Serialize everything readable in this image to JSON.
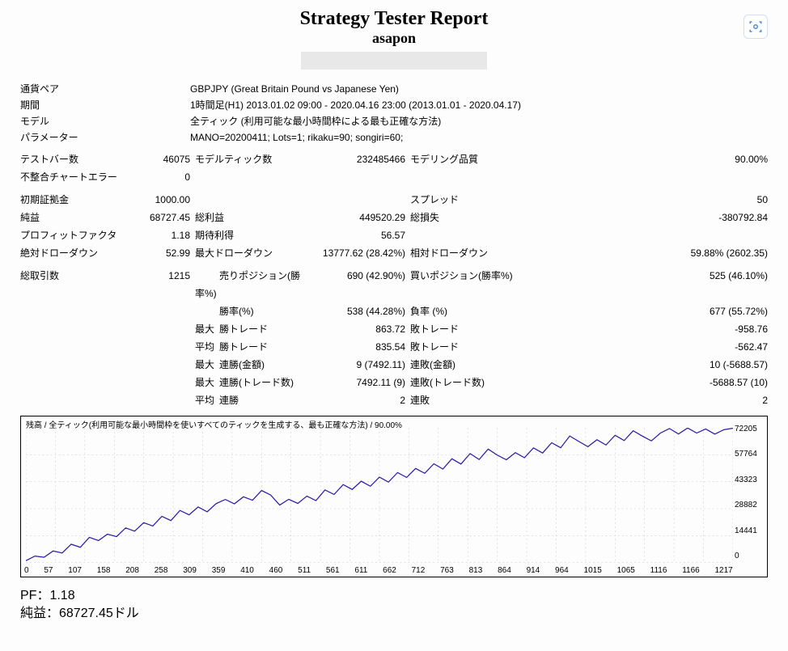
{
  "header": {
    "title": "Strategy Tester Report",
    "subtitle": "asapon"
  },
  "info_rows": [
    {
      "label": "通貨ペア",
      "value": "GBPJPY (Great Britain Pound vs Japanese Yen)"
    },
    {
      "label": "期間",
      "value": "1時間足(H1) 2013.01.02 09:00 - 2020.04.16 23:00 (2013.01.01 - 2020.04.17)"
    },
    {
      "label": "モデル",
      "value": "全ティック (利用可能な最小時間枠による最も正確な方法)"
    },
    {
      "label": "パラメーター",
      "value": "MANO=20200411; Lots=1; rikaku=90; songiri=60;"
    }
  ],
  "block2": [
    {
      "l1": "テストバー数",
      "v1": "46075",
      "l2": "モデルティック数",
      "v2": "232485466",
      "l3": "モデリング品質",
      "v3": "90.00%"
    },
    {
      "l1": "不整合チャートエラー",
      "v1": "0",
      "l2": "",
      "v2": "",
      "l3": "",
      "v3": ""
    }
  ],
  "block3": [
    {
      "l1": "初期証拠金",
      "v1": "1000.00",
      "l2": "",
      "v2": "",
      "l3": "スプレッド",
      "v3": "50"
    },
    {
      "l1": "純益",
      "v1": "68727.45",
      "l2": "総利益",
      "v2": "449520.29",
      "l3": "総損失",
      "v3": "-380792.84"
    },
    {
      "l1": "プロフィットファクタ",
      "v1": "1.18",
      "l2": "期待利得",
      "v2": "56.57",
      "l3": "",
      "v3": ""
    },
    {
      "l1": "絶対ドローダウン",
      "v1": "52.99",
      "l2": "最大ドローダウン",
      "v2": "13777.62 (28.42%)",
      "l3": "相対ドローダウン",
      "v3": "59.88% (2602.35)"
    }
  ],
  "block4": [
    {
      "l1": "総取引数",
      "v1": "1215",
      "pre": "",
      "l2": "売りポジション(勝率%)",
      "v2": "690 (42.90%)",
      "l3": "買いポジション(勝率%)",
      "v3": "525 (46.10%)"
    },
    {
      "l1": "",
      "v1": "",
      "pre": "",
      "l2": "勝率(%)",
      "v2": "538 (44.28%)",
      "l3": "負率 (%)",
      "v3": "677 (55.72%)"
    },
    {
      "l1": "",
      "v1": "",
      "pre": "最大",
      "l2": "勝トレード",
      "v2": "863.72",
      "l3": "敗トレード",
      "v3": "-958.76"
    },
    {
      "l1": "",
      "v1": "",
      "pre": "平均",
      "l2": "勝トレード",
      "v2": "835.54",
      "l3": "敗トレード",
      "v3": "-562.47"
    },
    {
      "l1": "",
      "v1": "",
      "pre": "最大",
      "l2": "連勝(金額)",
      "v2": "9 (7492.11)",
      "l3": "連敗(金額)",
      "v3": "10 (-5688.57)"
    },
    {
      "l1": "",
      "v1": "",
      "pre": "最大",
      "l2": "連勝(トレード数)",
      "v2": "7492.11 (9)",
      "l3": "連敗(トレード数)",
      "v3": "-5688.57 (10)"
    },
    {
      "l1": "",
      "v1": "",
      "pre": "平均",
      "l2": "連勝",
      "v2": "2",
      "l3": "連敗",
      "v3": "2"
    }
  ],
  "chart": {
    "type": "line",
    "title": "残高 / 全ティック(利用可能な最小時間枠を使いすべてのティックを生成する、最も正確な方法) / 90.00%",
    "line_color": "#2818a8",
    "line_width": 1.2,
    "background": "#ffffff",
    "grid_color": "#c8c8c8",
    "ylim": [
      0,
      72205
    ],
    "y_ticks": [
      "72205",
      "57764",
      "43323",
      "28882",
      "14441",
      "0"
    ],
    "x_ticks": [
      "0",
      "57",
      "107",
      "158",
      "208",
      "258",
      "309",
      "359",
      "410",
      "460",
      "511",
      "561",
      "611",
      "662",
      "712",
      "763",
      "813",
      "864",
      "914",
      "964",
      "1015",
      "1065",
      "1116",
      "1166",
      "1217"
    ],
    "values": [
      1000,
      3500,
      2800,
      6200,
      5100,
      9800,
      8200,
      13500,
      11800,
      15200,
      13900,
      18600,
      16800,
      21400,
      19600,
      24800,
      22500,
      27900,
      25600,
      29800,
      27200,
      31600,
      33800,
      31500,
      35200,
      33400,
      38600,
      36200,
      30800,
      33900,
      31700,
      35600,
      33200,
      38900,
      36500,
      41800,
      39200,
      43600,
      40900,
      45800,
      43100,
      48200,
      45600,
      50400,
      47800,
      52900,
      50100,
      55600,
      52800,
      58400,
      55200,
      60800,
      57600,
      55100,
      58900,
      56200,
      61400,
      58700,
      64200,
      61500,
      67800,
      64900,
      62100,
      65800,
      63000,
      68200,
      65400,
      70600,
      67800,
      65200,
      69400,
      71800,
      68900,
      72100,
      69400,
      71600,
      68800,
      71200,
      72000
    ]
  },
  "footer": {
    "pf": "PF：1.18",
    "profit": "純益：68727.45ドル"
  },
  "colors": {
    "scan_icon": "#4a90e2"
  }
}
